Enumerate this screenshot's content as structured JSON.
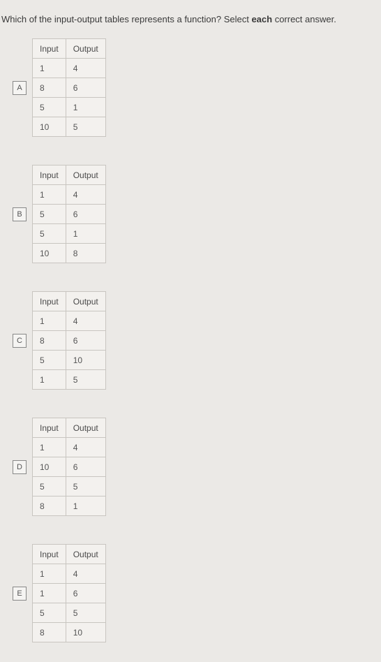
{
  "question_prefix": "Which of the input-output tables represents a function?  Select ",
  "question_bold": "each",
  "question_suffix": " correct answer.",
  "headers": {
    "input": "Input",
    "output": "Output"
  },
  "options": [
    {
      "label": "A",
      "rows": [
        [
          "1",
          "4"
        ],
        [
          "8",
          "6"
        ],
        [
          "5",
          "1"
        ],
        [
          "10",
          "5"
        ]
      ]
    },
    {
      "label": "B",
      "rows": [
        [
          "1",
          "4"
        ],
        [
          "5",
          "6"
        ],
        [
          "5",
          "1"
        ],
        [
          "10",
          "8"
        ]
      ]
    },
    {
      "label": "C",
      "rows": [
        [
          "1",
          "4"
        ],
        [
          "8",
          "6"
        ],
        [
          "5",
          "10"
        ],
        [
          "1",
          "5"
        ]
      ]
    },
    {
      "label": "D",
      "rows": [
        [
          "1",
          "4"
        ],
        [
          "10",
          "6"
        ],
        [
          "5",
          "5"
        ],
        [
          "8",
          "1"
        ]
      ]
    },
    {
      "label": "E",
      "rows": [
        [
          "1",
          "4"
        ],
        [
          "1",
          "6"
        ],
        [
          "5",
          "5"
        ],
        [
          "8",
          "10"
        ]
      ]
    }
  ],
  "style": {
    "bg": "#ebe9e6",
    "border": "#c8c5c0",
    "text": "#4a4a4a"
  }
}
